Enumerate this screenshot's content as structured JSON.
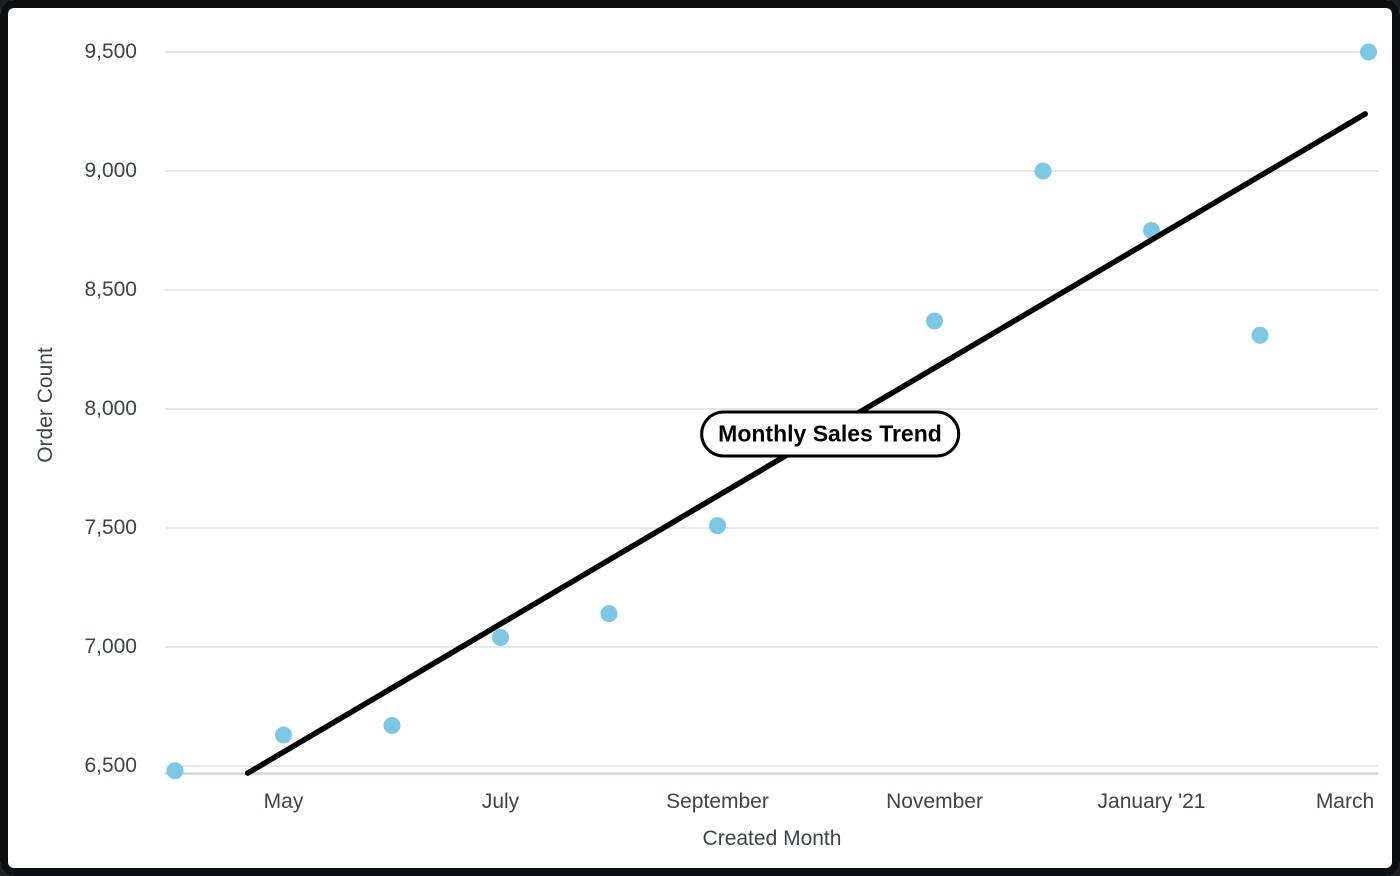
{
  "chart_data": {
    "type": "scatter",
    "title": "Monthly Sales Trend",
    "xlabel": "Created Month",
    "ylabel": "Order Count",
    "x_axis": {
      "tick_labels": [
        {
          "label": "May",
          "month_index": 1
        },
        {
          "label": "July",
          "month_index": 3
        },
        {
          "label": "September",
          "month_index": 5
        },
        {
          "label": "November",
          "month_index": 7
        },
        {
          "label": "January '21",
          "month_index": 9
        },
        {
          "label": "March",
          "month_index": 11
        }
      ]
    },
    "y_axis": {
      "tick_labels": [
        "6,500",
        "7,000",
        "7,500",
        "8,000",
        "8,500",
        "9,000",
        "9,500"
      ],
      "tick_values": [
        6500,
        7000,
        7500,
        8000,
        8500,
        9000,
        9500
      ],
      "range": [
        6500,
        9500
      ]
    },
    "points": [
      {
        "month": "April '20",
        "month_index": 0,
        "value": 6480
      },
      {
        "month": "May",
        "month_index": 1,
        "value": 6630
      },
      {
        "month": "June",
        "month_index": 2,
        "value": 6670
      },
      {
        "month": "July",
        "month_index": 3,
        "value": 7040
      },
      {
        "month": "August",
        "month_index": 4,
        "value": 7140
      },
      {
        "month": "September",
        "month_index": 5,
        "value": 7510
      },
      {
        "month": "November",
        "month_index": 7,
        "value": 8370
      },
      {
        "month": "December",
        "month_index": 8,
        "value": 9000
      },
      {
        "month": "January '21",
        "month_index": 9,
        "value": 8750
      },
      {
        "month": "February",
        "month_index": 10,
        "value": 8310
      },
      {
        "month": "March",
        "month_index": 11,
        "value": 9500
      }
    ],
    "trend_line": {
      "start_month_index": 0.67,
      "start_value": 6470,
      "end_month_index": 10.97,
      "end_value": 9240
    },
    "colors": {
      "point": "#7dc6e4",
      "trend_line": "#000000",
      "gridline": "#e7e7e7",
      "axis_line": "#ccd6e4",
      "text": "#3c444b",
      "annotation_bg": "#ffffff",
      "annotation_border": "#000000"
    }
  }
}
